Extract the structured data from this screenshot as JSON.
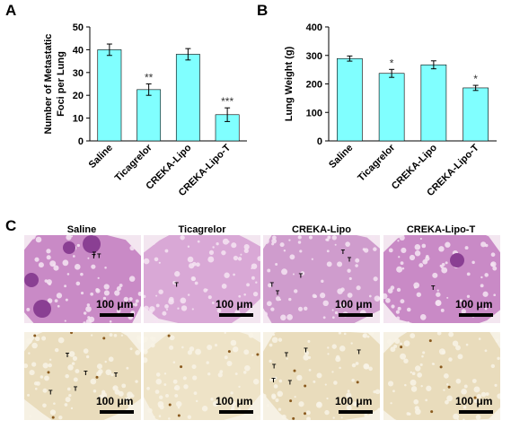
{
  "panels": {
    "a": "A",
    "b": "B",
    "c": "C"
  },
  "chart_data": [
    {
      "type": "bar",
      "ylabel": "Number of Metastatic Foci per Lung",
      "ylabel_lines": [
        "Number of Metastatic",
        "Foci per Lung"
      ],
      "categories": [
        "Saline",
        "Ticagrelor",
        "CREKA-Lipo",
        "CREKA-Lipo-T"
      ],
      "values": [
        40,
        22.5,
        38,
        11.5
      ],
      "errors": [
        2.5,
        2.5,
        2.5,
        3
      ],
      "significance": [
        "",
        "**",
        "",
        "***"
      ],
      "ylim": [
        0,
        50
      ],
      "yticks": [
        0,
        10,
        20,
        30,
        40,
        50
      ],
      "bar_color": "#80ffff"
    },
    {
      "type": "bar",
      "ylabel": "Lung Weight (g)",
      "categories": [
        "Saline",
        "Ticagrelor",
        "CREKA-Lipo",
        "CREKA-Lipo-T"
      ],
      "values": [
        289,
        237,
        267,
        186
      ],
      "errors": [
        9,
        14,
        14,
        9
      ],
      "significance": [
        "",
        "*",
        "",
        "*"
      ],
      "ylim": [
        0,
        400
      ],
      "yticks": [
        0,
        100,
        200,
        300,
        400
      ],
      "bar_color": "#80ffff"
    }
  ],
  "histology": {
    "columns": [
      "Saline",
      "Ticagrelor",
      "CREKA-Lipo",
      "CREKA-Lipo-T"
    ],
    "scale_label": "100 μm",
    "tumor_marker": "T",
    "he_color": "#c77bc5",
    "ihc_color": "#efe3c8"
  }
}
